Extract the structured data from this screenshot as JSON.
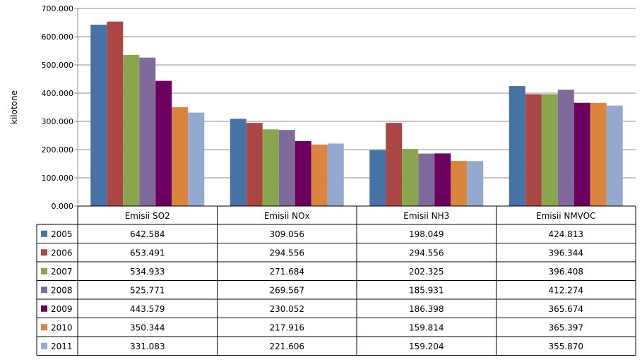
{
  "chart_data": {
    "type": "bar",
    "ylabel": "kilotone",
    "ylim": [
      0,
      700
    ],
    "ytick_labels": [
      "0.000",
      "100.000",
      "200.000",
      "300.000",
      "400.000",
      "500.000",
      "600.000",
      "700.000"
    ],
    "ytick_values": [
      0,
      100,
      200,
      300,
      400,
      500,
      600,
      700
    ],
    "grid": true,
    "legend": "data-table-left",
    "categories": [
      "Emisii SO2",
      "Emisii NOx",
      "Emisii NH3",
      "Emisii NMVOC"
    ],
    "series": [
      {
        "name": "2005",
        "color": "#4572A7",
        "values": [
          642.584,
          309.056,
          198.049,
          424.813
        ],
        "labels": [
          "642.584",
          "309.056",
          "198.049",
          "424.813"
        ]
      },
      {
        "name": "2006",
        "color": "#AA4643",
        "values": [
          653.491,
          294.556,
          294.556,
          396.344
        ],
        "labels": [
          "653.491",
          "294.556",
          "294.556",
          "396.344"
        ]
      },
      {
        "name": "2007",
        "color": "#89A54E",
        "values": [
          534.933,
          271.684,
          202.325,
          396.408
        ],
        "labels": [
          "534.933",
          "271.684",
          "202.325",
          "396.408"
        ]
      },
      {
        "name": "2008",
        "color": "#80699B",
        "values": [
          525.771,
          269.567,
          185.931,
          412.274
        ],
        "labels": [
          "525.771",
          "269.567",
          "185.931",
          "412.274"
        ]
      },
      {
        "name": "2009",
        "color": "#6B0060",
        "values": [
          443.579,
          230.052,
          186.398,
          365.674
        ],
        "labels": [
          "443.579",
          "230.052",
          "186.398",
          "365.674"
        ]
      },
      {
        "name": "2010",
        "color": "#DB843D",
        "values": [
          350.344,
          217.916,
          159.814,
          365.397
        ],
        "labels": [
          "350.344",
          "217.916",
          "159.814",
          "365.397"
        ]
      },
      {
        "name": "2011",
        "color": "#93A9CF",
        "values": [
          331.083,
          221.606,
          159.204,
          355.87
        ],
        "labels": [
          "331.083",
          "221.606",
          "159.204",
          "355.870"
        ]
      }
    ]
  }
}
